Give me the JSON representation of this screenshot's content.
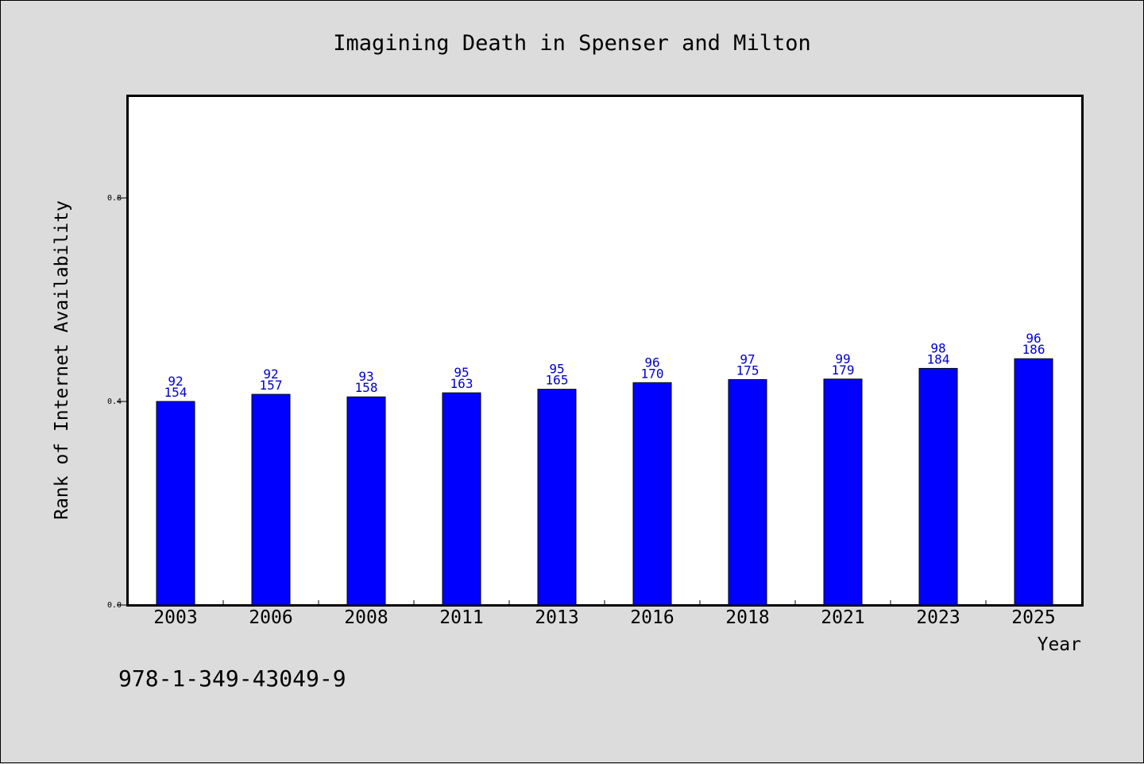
{
  "chart_data": {
    "type": "bar",
    "title": "Imagining Death in Spenser and Milton",
    "xlabel": "Year",
    "ylabel": "Rank of Internet Availability",
    "categories": [
      "2003",
      "2006",
      "2008",
      "2011",
      "2013",
      "2016",
      "2018",
      "2021",
      "2023",
      "2025"
    ],
    "values": [
      0.4,
      0.414,
      0.409,
      0.417,
      0.424,
      0.437,
      0.443,
      0.444,
      0.465,
      0.484
    ],
    "annotations_top": [
      "92",
      "92",
      "93",
      "95",
      "95",
      "96",
      "97",
      "99",
      "98",
      "96"
    ],
    "annotations_bottom": [
      "154",
      "157",
      "158",
      "163",
      "165",
      "170",
      "175",
      "179",
      "184",
      "186"
    ],
    "ylim": [
      0,
      1.0
    ],
    "yticks": [
      0.0,
      0.4,
      0.8
    ],
    "ytick_labels": [
      "0.0",
      "0.4",
      "0.8"
    ],
    "bar_color": "#0000ff",
    "label_color": "#0000cc",
    "grid": false,
    "legend": "none"
  },
  "footer_text": "978-1-349-43049-9"
}
